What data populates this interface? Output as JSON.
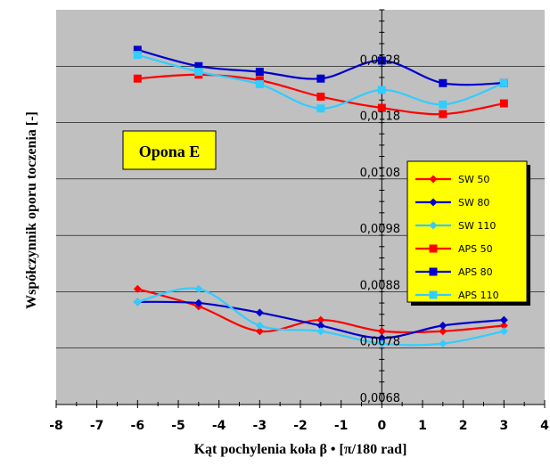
{
  "chart_data": {
    "type": "line",
    "title": "",
    "annotation": "Opona E",
    "xlabel": "Kąt pochylenia koła β • [π/180 rad]",
    "ylabel": "Współczynnik oporu toczenia [-]",
    "xlim": [
      -8,
      4
    ],
    "ylim": [
      0.0068,
      0.0138
    ],
    "x_ticks": [
      "-8",
      "-7",
      "-6",
      "-5",
      "-4",
      "-3",
      "-2",
      "-1",
      "0",
      "1",
      "2",
      "3",
      "4"
    ],
    "y_ticks": [
      "0,0068",
      "0,0078",
      "0,0088",
      "0,0098",
      "0,0108",
      "0,0118",
      "0,0128"
    ],
    "grid": true,
    "legend_position": "right",
    "series": [
      {
        "name": "SW 50",
        "color": "#ff0000",
        "marker": "diamond",
        "x": [
          -6,
          -4.5,
          -3,
          -1.5,
          0,
          1.5,
          3
        ],
        "y": [
          0.00885,
          0.00854,
          0.0081,
          0.0083,
          0.0081,
          0.0081,
          0.0082
        ]
      },
      {
        "name": "SW 80",
        "color": "#0000cc",
        "marker": "diamond",
        "x": [
          -6,
          -4.5,
          -3,
          -1.5,
          0,
          1.5,
          3
        ],
        "y": [
          0.00862,
          0.0086,
          0.00843,
          0.0082,
          0.00798,
          0.0082,
          0.0083
        ]
      },
      {
        "name": "SW 110",
        "color": "#33ccff",
        "marker": "diamond",
        "x": [
          -6,
          -4.5,
          -3,
          -1.5,
          0,
          1.5,
          3
        ],
        "y": [
          0.00862,
          0.00885,
          0.0082,
          0.0081,
          0.00788,
          0.00788,
          0.0081
        ]
      },
      {
        "name": "APS 50",
        "color": "#ff0000",
        "marker": "square",
        "x": [
          -6,
          -4.5,
          -3,
          -1.5,
          0,
          1.5,
          3
        ],
        "y": [
          0.01258,
          0.01265,
          0.01255,
          0.01226,
          0.01206,
          0.01195,
          0.01214
        ]
      },
      {
        "name": "APS 80",
        "color": "#0000cc",
        "marker": "square",
        "x": [
          -6,
          -4.5,
          -3,
          -1.5,
          0,
          1.5,
          3
        ],
        "y": [
          0.01309,
          0.0128,
          0.0127,
          0.01258,
          0.0129,
          0.0125,
          0.0125
        ]
      },
      {
        "name": "APS 110",
        "color": "#33ccff",
        "marker": "square",
        "x": [
          -6,
          -4.5,
          -3,
          -1.5,
          0,
          1.5,
          3
        ],
        "y": [
          0.013,
          0.0127,
          0.01248,
          0.01205,
          0.01238,
          0.01212,
          0.0125
        ]
      }
    ]
  }
}
